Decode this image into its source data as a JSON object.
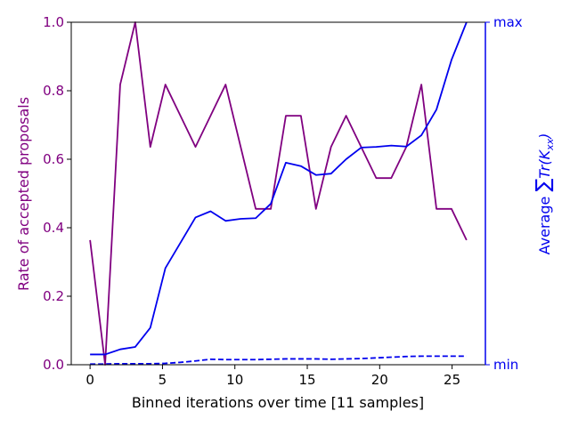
{
  "chart_data": {
    "type": "line",
    "xlabel": "Binned iterations over time [11 samples]",
    "ylabel_left": "Rate of accepted proposals",
    "ylabel_right_prefix": "Average ",
    "ylabel_right_sigma": "∑",
    "ylabel_right_tr": "Tr(K",
    "ylabel_right_sub": "xx",
    "ylabel_right_close": ")",
    "xlim": [
      -1.3,
      27.3
    ],
    "ylim_left": [
      0,
      1
    ],
    "ylim_right": [
      0,
      1
    ],
    "x_ticks": [
      0,
      5,
      10,
      15,
      20,
      25
    ],
    "y_ticks_left": [
      "0.0",
      "0.2",
      "0.4",
      "0.6",
      "0.8",
      "1.0"
    ],
    "y_ticks_right": [
      {
        "value": 0,
        "label": "min"
      },
      {
        "value": 1,
        "label": "max"
      }
    ],
    "colors": {
      "acceptance": "#800080",
      "trace": "#0000ee",
      "left_axis_text": "#800080",
      "right_axis_text": "#0000ee"
    },
    "series": [
      {
        "axis": "left",
        "style": "solid",
        "x": [
          0,
          1.04,
          2.08,
          3.12,
          4.16,
          5.2,
          6.24,
          7.28,
          8.32,
          9.36,
          10.4,
          11.44,
          12.48,
          13.52,
          14.56,
          15.6,
          16.64,
          17.68,
          18.72,
          19.76,
          20.8,
          21.84,
          22.88,
          23.92,
          24.96,
          26
        ],
        "values": [
          0.364,
          0.0,
          0.818,
          1.0,
          0.636,
          0.818,
          0.727,
          0.636,
          0.727,
          0.818,
          0.636,
          0.455,
          0.455,
          0.727,
          0.727,
          0.455,
          0.636,
          0.727,
          0.636,
          0.545,
          0.545,
          0.636,
          0.818,
          0.455,
          0.455,
          0.364
        ]
      },
      {
        "axis": "right",
        "style": "solid",
        "x": [
          0,
          1.04,
          2.08,
          3.12,
          4.16,
          5.2,
          6.24,
          7.28,
          8.32,
          9.36,
          10.4,
          11.44,
          12.48,
          13.52,
          14.56,
          15.6,
          16.64,
          17.68,
          18.72,
          19.76,
          20.8,
          21.84,
          22.88,
          23.92,
          24.96,
          26
        ],
        "values": [
          0.03,
          0.03,
          0.045,
          0.052,
          0.108,
          0.282,
          0.356,
          0.43,
          0.448,
          0.42,
          0.426,
          0.428,
          0.47,
          0.59,
          0.58,
          0.554,
          0.558,
          0.6,
          0.634,
          0.636,
          0.64,
          0.637,
          0.67,
          0.745,
          0.89,
          1.0
        ]
      },
      {
        "axis": "right",
        "style": "dashed",
        "x": [
          0,
          1.04,
          2.08,
          3.12,
          4.16,
          5.2,
          6.24,
          7.28,
          8.32,
          9.36,
          10.4,
          11.44,
          12.48,
          13.52,
          14.56,
          15.6,
          16.64,
          17.68,
          18.72,
          19.76,
          20.8,
          21.84,
          22.88,
          23.92,
          24.96,
          26
        ],
        "values": [
          0.002,
          0.002,
          0.003,
          0.003,
          0.003,
          0.004,
          0.007,
          0.011,
          0.016,
          0.015,
          0.015,
          0.015,
          0.016,
          0.017,
          0.017,
          0.017,
          0.016,
          0.017,
          0.018,
          0.02,
          0.022,
          0.024,
          0.025,
          0.025,
          0.025,
          0.025
        ]
      }
    ]
  }
}
